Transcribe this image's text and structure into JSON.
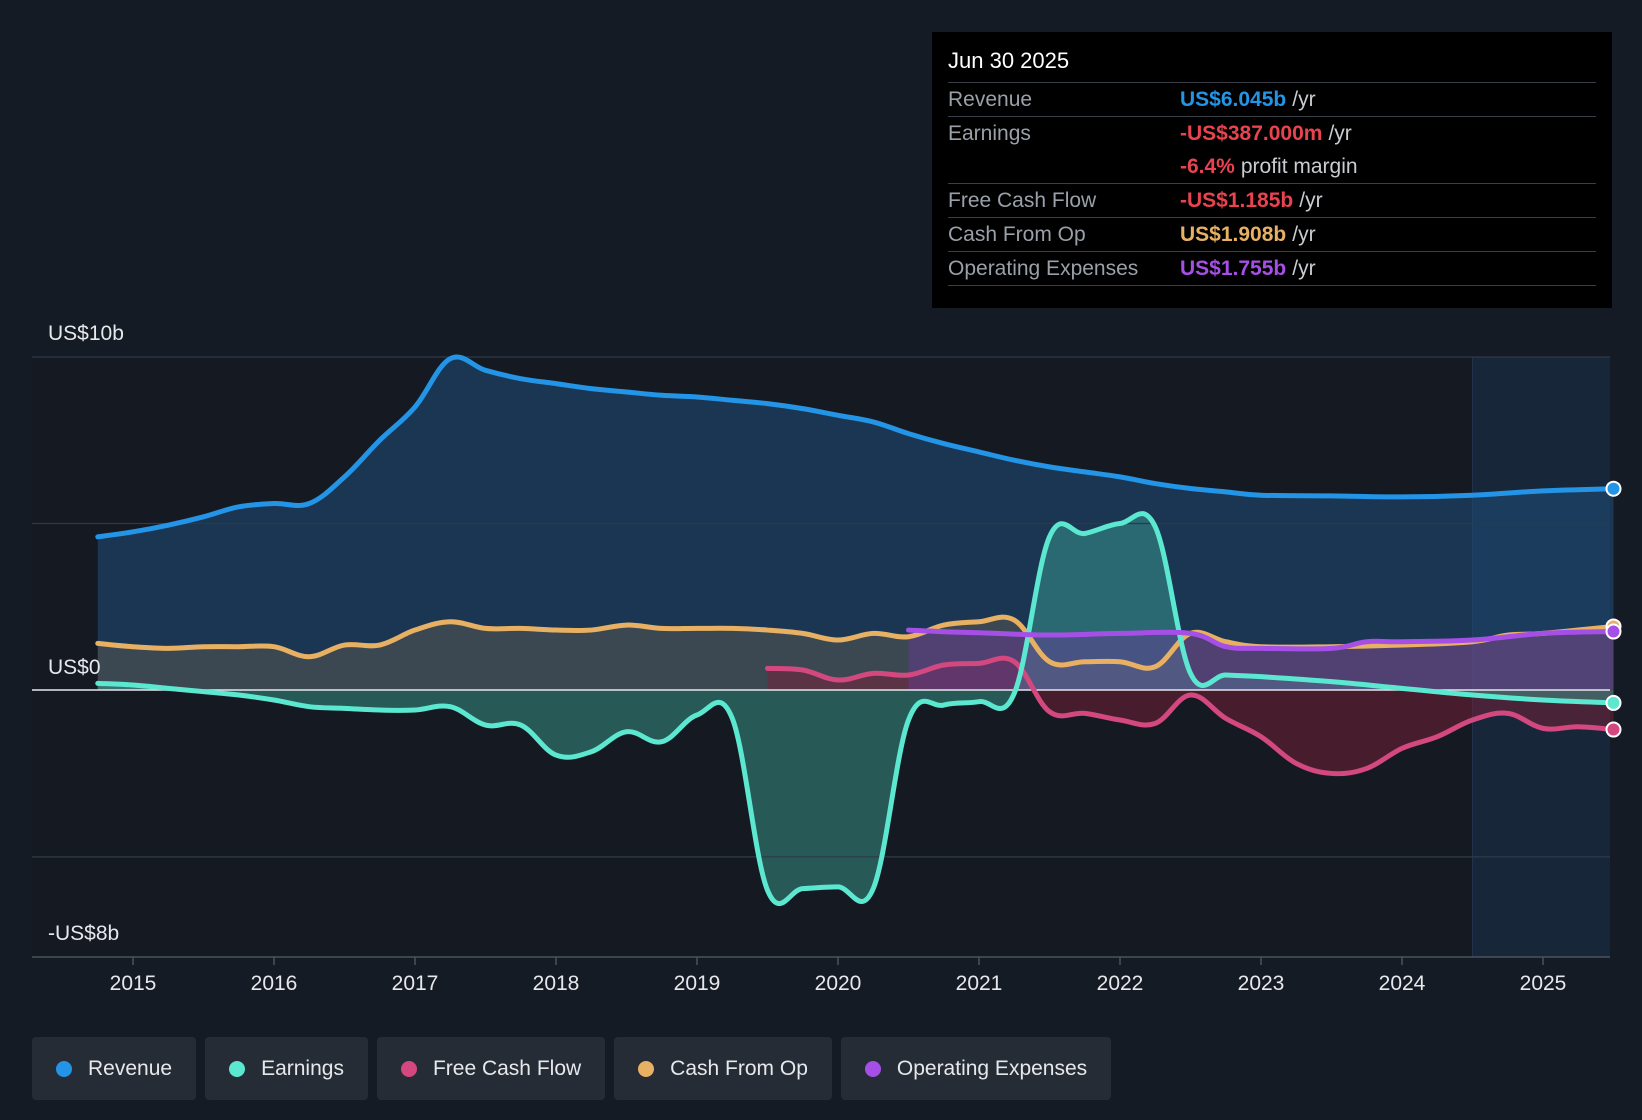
{
  "colors": {
    "revenue": "#2394e6",
    "earnings": "#5ce8d0",
    "fcf": "#d2487f",
    "cfo": "#e8b062",
    "opex": "#a64fe6",
    "negative": "#e8434f"
  },
  "tooltip": {
    "date": "Jun 30 2025",
    "rows": [
      {
        "label": "Revenue",
        "value": "US$6.045b",
        "unit": "/yr",
        "color": "#2394e6"
      },
      {
        "label": "Earnings",
        "value": "-US$387.000m",
        "unit": "/yr",
        "color": "#e8434f",
        "sub_value": "-6.4%",
        "sub_unit": "profit margin"
      },
      {
        "label": "Free Cash Flow",
        "value": "-US$1.185b",
        "unit": "/yr",
        "color": "#e8434f"
      },
      {
        "label": "Cash From Op",
        "value": "US$1.908b",
        "unit": "/yr",
        "color": "#e8b062"
      },
      {
        "label": "Operating Expenses",
        "value": "US$1.755b",
        "unit": "/yr",
        "color": "#a64fe6"
      }
    ]
  },
  "legend": [
    {
      "label": "Revenue",
      "color": "#2394e6"
    },
    {
      "label": "Earnings",
      "color": "#5ce8d0"
    },
    {
      "label": "Free Cash Flow",
      "color": "#d2487f"
    },
    {
      "label": "Cash From Op",
      "color": "#e8b062"
    },
    {
      "label": "Operating Expenses",
      "color": "#a64fe6"
    }
  ],
  "chart_data": {
    "type": "line",
    "title": "",
    "unit": "US$b",
    "y_labels": [
      "US$10b",
      "US$0",
      "-US$8b"
    ],
    "ylim": [
      -8,
      10
    ],
    "xlim": [
      2014.3,
      2025.5
    ],
    "x_ticks": [
      "2015",
      "2016",
      "2017",
      "2018",
      "2019",
      "2020",
      "2021",
      "2022",
      "2023",
      "2024",
      "2025"
    ],
    "forecast_start": 2024.5,
    "series": [
      {
        "name": "Revenue",
        "key": "revenue",
        "points": [
          [
            2014.75,
            4.6
          ],
          [
            2015.0,
            4.75
          ],
          [
            2015.25,
            4.95
          ],
          [
            2015.5,
            5.2
          ],
          [
            2015.75,
            5.5
          ],
          [
            2016.0,
            5.6
          ],
          [
            2016.25,
            5.6
          ],
          [
            2016.5,
            6.4
          ],
          [
            2016.75,
            7.5
          ],
          [
            2017.0,
            8.5
          ],
          [
            2017.25,
            9.95
          ],
          [
            2017.5,
            9.6
          ],
          [
            2017.75,
            9.35
          ],
          [
            2018.0,
            9.2
          ],
          [
            2018.25,
            9.05
          ],
          [
            2018.5,
            8.95
          ],
          [
            2018.75,
            8.85
          ],
          [
            2019.0,
            8.8
          ],
          [
            2019.25,
            8.7
          ],
          [
            2019.5,
            8.6
          ],
          [
            2019.75,
            8.45
          ],
          [
            2020.0,
            8.25
          ],
          [
            2020.25,
            8.05
          ],
          [
            2020.5,
            7.7
          ],
          [
            2020.75,
            7.4
          ],
          [
            2021.0,
            7.15
          ],
          [
            2021.25,
            6.9
          ],
          [
            2021.5,
            6.7
          ],
          [
            2021.75,
            6.55
          ],
          [
            2022.0,
            6.4
          ],
          [
            2022.25,
            6.2
          ],
          [
            2022.5,
            6.05
          ],
          [
            2022.75,
            5.95
          ],
          [
            2023.0,
            5.85
          ],
          [
            2023.5,
            5.83
          ],
          [
            2024.0,
            5.8
          ],
          [
            2024.5,
            5.85
          ],
          [
            2025.0,
            5.98
          ],
          [
            2025.5,
            6.045
          ]
        ]
      },
      {
        "name": "Earnings",
        "key": "earnings",
        "points": [
          [
            2014.75,
            0.2
          ],
          [
            2015.0,
            0.15
          ],
          [
            2015.25,
            0.05
          ],
          [
            2015.5,
            -0.05
          ],
          [
            2015.75,
            -0.15
          ],
          [
            2016.0,
            -0.3
          ],
          [
            2016.25,
            -0.5
          ],
          [
            2016.5,
            -0.55
          ],
          [
            2016.75,
            -0.6
          ],
          [
            2017.0,
            -0.6
          ],
          [
            2017.25,
            -0.5
          ],
          [
            2017.5,
            -1.05
          ],
          [
            2017.75,
            -1.05
          ],
          [
            2018.0,
            -1.95
          ],
          [
            2018.25,
            -1.85
          ],
          [
            2018.5,
            -1.25
          ],
          [
            2018.75,
            -1.55
          ],
          [
            2019.0,
            -0.75
          ],
          [
            2019.25,
            -0.85
          ],
          [
            2019.5,
            -6.0
          ],
          [
            2019.75,
            -5.95
          ],
          [
            2020.0,
            -5.9
          ],
          [
            2020.25,
            -5.95
          ],
          [
            2020.5,
            -0.9
          ],
          [
            2020.75,
            -0.45
          ],
          [
            2021.0,
            -0.35
          ],
          [
            2021.25,
            -0.1
          ],
          [
            2021.5,
            4.6
          ],
          [
            2021.75,
            4.7
          ],
          [
            2022.0,
            5.0
          ],
          [
            2022.25,
            4.9
          ],
          [
            2022.5,
            0.5
          ],
          [
            2022.75,
            0.45
          ],
          [
            2023.0,
            0.4
          ],
          [
            2023.5,
            0.25
          ],
          [
            2024.0,
            0.05
          ],
          [
            2024.5,
            -0.15
          ],
          [
            2025.0,
            -0.3
          ],
          [
            2025.5,
            -0.387
          ]
        ]
      },
      {
        "name": "Free Cash Flow",
        "key": "fcf",
        "points": [
          [
            2019.5,
            0.65
          ],
          [
            2019.75,
            0.6
          ],
          [
            2020.0,
            0.3
          ],
          [
            2020.25,
            0.5
          ],
          [
            2020.5,
            0.45
          ],
          [
            2020.75,
            0.75
          ],
          [
            2021.0,
            0.8
          ],
          [
            2021.25,
            0.85
          ],
          [
            2021.5,
            -0.65
          ],
          [
            2021.75,
            -0.7
          ],
          [
            2022.0,
            -0.9
          ],
          [
            2022.25,
            -1.0
          ],
          [
            2022.5,
            -0.15
          ],
          [
            2022.75,
            -0.85
          ],
          [
            2023.0,
            -1.4
          ],
          [
            2023.25,
            -2.2
          ],
          [
            2023.5,
            -2.5
          ],
          [
            2023.75,
            -2.35
          ],
          [
            2024.0,
            -1.75
          ],
          [
            2024.25,
            -1.4
          ],
          [
            2024.5,
            -0.9
          ],
          [
            2024.75,
            -0.7
          ],
          [
            2025.0,
            -1.15
          ],
          [
            2025.25,
            -1.1
          ],
          [
            2025.5,
            -1.185
          ]
        ]
      },
      {
        "name": "Cash From Op",
        "key": "cfo",
        "points": [
          [
            2014.75,
            1.4
          ],
          [
            2015.0,
            1.3
          ],
          [
            2015.25,
            1.25
          ],
          [
            2015.5,
            1.3
          ],
          [
            2015.75,
            1.3
          ],
          [
            2016.0,
            1.3
          ],
          [
            2016.25,
            1.0
          ],
          [
            2016.5,
            1.35
          ],
          [
            2016.75,
            1.35
          ],
          [
            2017.0,
            1.8
          ],
          [
            2017.25,
            2.05
          ],
          [
            2017.5,
            1.85
          ],
          [
            2017.75,
            1.85
          ],
          [
            2018.0,
            1.8
          ],
          [
            2018.25,
            1.8
          ],
          [
            2018.5,
            1.95
          ],
          [
            2018.75,
            1.85
          ],
          [
            2019.0,
            1.85
          ],
          [
            2019.25,
            1.85
          ],
          [
            2019.5,
            1.8
          ],
          [
            2019.75,
            1.7
          ],
          [
            2020.0,
            1.5
          ],
          [
            2020.25,
            1.7
          ],
          [
            2020.5,
            1.6
          ],
          [
            2020.75,
            1.95
          ],
          [
            2021.0,
            2.05
          ],
          [
            2021.25,
            2.1
          ],
          [
            2021.5,
            0.85
          ],
          [
            2021.75,
            0.85
          ],
          [
            2022.0,
            0.85
          ],
          [
            2022.25,
            0.7
          ],
          [
            2022.5,
            1.7
          ],
          [
            2022.75,
            1.45
          ],
          [
            2023.0,
            1.3
          ],
          [
            2023.5,
            1.3
          ],
          [
            2024.0,
            1.35
          ],
          [
            2024.5,
            1.45
          ],
          [
            2024.75,
            1.65
          ],
          [
            2025.0,
            1.7
          ],
          [
            2025.5,
            1.908
          ]
        ]
      },
      {
        "name": "Operating Expenses",
        "key": "opex",
        "points": [
          [
            2020.5,
            1.8
          ],
          [
            2020.75,
            1.75
          ],
          [
            2021.0,
            1.72
          ],
          [
            2021.5,
            1.65
          ],
          [
            2022.0,
            1.7
          ],
          [
            2022.5,
            1.7
          ],
          [
            2022.75,
            1.3
          ],
          [
            2023.0,
            1.25
          ],
          [
            2023.5,
            1.25
          ],
          [
            2023.75,
            1.45
          ],
          [
            2024.0,
            1.45
          ],
          [
            2024.5,
            1.5
          ],
          [
            2025.0,
            1.7
          ],
          [
            2025.5,
            1.755
          ]
        ]
      }
    ]
  }
}
